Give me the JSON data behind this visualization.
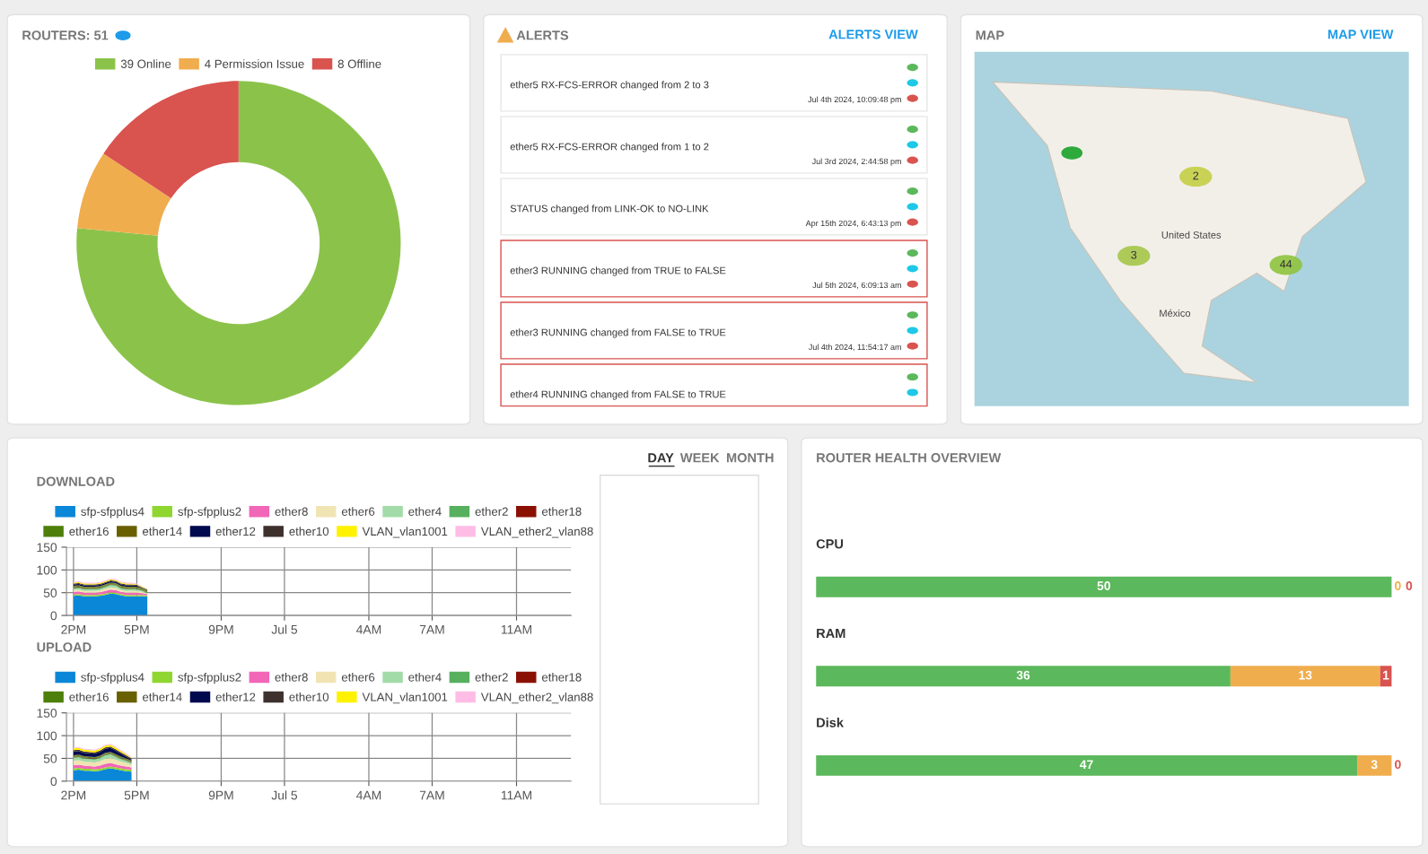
{
  "chart_data": [
    {
      "type": "donut",
      "title": "ROUTERS: 51",
      "legend": "top",
      "categories": [
        "39 Online",
        "4 Permission Issue",
        "8 Offline"
      ],
      "values": [
        39,
        4,
        8
      ],
      "colors": [
        "#8bc34a",
        "#f0ad4e",
        "#d9534f"
      ]
    },
    {
      "type": "other",
      "title": "ALERTS",
      "annotations": [
        "ALERTS VIEW",
        "ether5 RX-FCS-ERROR changed from 2 to 3",
        "Jul 4th 2024, 10:09:48 pm",
        "ether5 RX-FCS-ERROR changed from 1 to 2",
        "Jul 3rd 2024, 2:44:58 pm",
        "STATUS changed from LINK-OK to NO-LINK",
        "Apr 15th 2024, 6:43:13 pm",
        "ether3 RUNNING changed from TRUE to FALSE",
        "Jul 5th 2024, 6:09:13 am",
        "ether3 RUNNING changed from FALSE to TRUE",
        "Jul 4th 2024, 11:54:17 am",
        "ether4 RUNNING changed from FALSE to TRUE"
      ]
    },
    {
      "type": "other",
      "title": "MAP",
      "annotations": [
        "MAP VIEW",
        "United States",
        "México",
        "2",
        "3",
        "44"
      ]
    },
    {
      "type": "area",
      "stacked": true,
      "title": "DOWNLOAD",
      "annotations": [
        "DAY",
        "WEEK",
        "MONTH"
      ],
      "legend": "top",
      "grid": true,
      "x": [
        "2024-07-04T14:00",
        "2024-07-04T14:15",
        "2024-07-04T14:30",
        "2024-07-04T14:45",
        "2024-07-04T15:00",
        "2024-07-04T15:15",
        "2024-07-04T15:30",
        "2024-07-04T15:45",
        "2024-07-04T16:00",
        "2024-07-04T16:15",
        "2024-07-04T16:30",
        "2024-07-04T16:45",
        "2024-07-04T17:00",
        "2024-07-04T17:15",
        "2024-07-04T17:30"
      ],
      "xlim": [
        "2024-07-04T13:40",
        "2024-07-05T13:35"
      ],
      "xticks": [
        {
          "value": "2024-07-04T14:00",
          "label": "2PM"
        },
        {
          "value": "2024-07-04T17:00",
          "label": "5PM"
        },
        {
          "value": "2024-07-04T21:00",
          "label": "9PM"
        },
        {
          "value": "2024-07-05T00:00",
          "label": "Jul 5"
        },
        {
          "value": "2024-07-05T04:00",
          "label": "4AM"
        },
        {
          "value": "2024-07-05T07:00",
          "label": "7AM"
        },
        {
          "value": "2024-07-05T11:00",
          "label": "11AM"
        }
      ],
      "ylim": [
        0,
        150
      ],
      "yticks": [
        0,
        50,
        100,
        150
      ],
      "series": [
        {
          "name": "sfp-sfpplus4",
          "color": "#0b87d8",
          "values": [
            43,
            44,
            42,
            42,
            42,
            43,
            45,
            48,
            47,
            44,
            42,
            42,
            42,
            42,
            42
          ]
        },
        {
          "name": "sfp-sfpplus2",
          "color": "#8fd631",
          "values": [
            3,
            3,
            3,
            3,
            3,
            3,
            3,
            3,
            3,
            3,
            3,
            3,
            3,
            3,
            2
          ]
        },
        {
          "name": "ether8",
          "color": "#f266b8",
          "values": [
            6,
            6,
            5,
            5,
            5,
            5,
            6,
            6,
            6,
            5,
            5,
            5,
            5,
            4,
            3
          ]
        },
        {
          "name": "ether6",
          "color": "#f1e4b3",
          "values": [
            4,
            4,
            4,
            4,
            4,
            4,
            5,
            5,
            5,
            4,
            4,
            4,
            4,
            3,
            1
          ]
        },
        {
          "name": "ether4",
          "color": "#a3dba8",
          "values": [
            3,
            3,
            3,
            3,
            3,
            3,
            3,
            4,
            4,
            3,
            3,
            3,
            3,
            2,
            1
          ]
        },
        {
          "name": "ether2",
          "color": "#56b05e",
          "values": [
            2,
            2,
            2,
            2,
            2,
            2,
            2,
            2,
            2,
            2,
            2,
            2,
            2,
            2,
            2
          ]
        },
        {
          "name": "ether18",
          "color": "#8b1004",
          "values": [
            1,
            1,
            1,
            1,
            1,
            1,
            1,
            1,
            1,
            1,
            1,
            1,
            1,
            1,
            1
          ]
        },
        {
          "name": "ether16",
          "color": "#4e7f0b",
          "values": [
            2,
            2,
            2,
            2,
            2,
            2,
            2,
            2,
            2,
            2,
            2,
            2,
            2,
            2,
            2
          ]
        },
        {
          "name": "ether14",
          "color": "#6a6000",
          "values": [
            1,
            1,
            1,
            1,
            1,
            1,
            1,
            1,
            1,
            1,
            1,
            1,
            1,
            1,
            1
          ]
        },
        {
          "name": "ether12",
          "color": "#010a4f",
          "values": [
            3,
            3,
            3,
            3,
            3,
            3,
            3,
            3,
            3,
            3,
            3,
            3,
            2,
            1,
            1
          ]
        },
        {
          "name": "ether10",
          "color": "#3e302c",
          "values": [
            2,
            2,
            2,
            2,
            2,
            2,
            2,
            2,
            2,
            2,
            2,
            2,
            2,
            1,
            1
          ]
        },
        {
          "name": "VLAN_vlan1001",
          "color": "#fff200",
          "values": [
            2,
            2,
            2,
            2,
            2,
            2,
            2,
            2,
            2,
            2,
            2,
            2,
            1,
            1,
            1
          ]
        },
        {
          "name": "VLAN_ether2_vlan88",
          "color": "#ffbde6",
          "values": [
            2,
            2,
            2,
            2,
            2,
            2,
            2,
            2,
            2,
            2,
            2,
            2,
            2,
            1,
            1
          ]
        }
      ]
    },
    {
      "type": "area",
      "stacked": true,
      "title": "UPLOAD",
      "legend": "top",
      "grid": true,
      "x": [
        "2024-07-04T14:00",
        "2024-07-04T14:15",
        "2024-07-04T14:30",
        "2024-07-04T14:45",
        "2024-07-04T15:00",
        "2024-07-04T15:15",
        "2024-07-04T15:30",
        "2024-07-04T15:45",
        "2024-07-04T16:00",
        "2024-07-04T16:15",
        "2024-07-04T16:30",
        "2024-07-04T16:45"
      ],
      "xlim": [
        "2024-07-04T13:40",
        "2024-07-05T13:35"
      ],
      "xticks": [
        {
          "value": "2024-07-04T14:00",
          "label": "2PM"
        },
        {
          "value": "2024-07-04T17:00",
          "label": "5PM"
        },
        {
          "value": "2024-07-04T21:00",
          "label": "9PM"
        },
        {
          "value": "2024-07-05T00:00",
          "label": "Jul 5"
        },
        {
          "value": "2024-07-05T04:00",
          "label": "4AM"
        },
        {
          "value": "2024-07-05T07:00",
          "label": "7AM"
        },
        {
          "value": "2024-07-05T11:00",
          "label": "11AM"
        }
      ],
      "ylim": [
        0,
        150
      ],
      "yticks": [
        0,
        50,
        100,
        150
      ],
      "series": [
        {
          "name": "sfp-sfpplus4",
          "color": "#0b87d8",
          "values": [
            24,
            25,
            23,
            23,
            22,
            23,
            26,
            28,
            26,
            24,
            22,
            21
          ]
        },
        {
          "name": "sfp-sfpplus2",
          "color": "#8fd631",
          "values": [
            4,
            4,
            4,
            4,
            4,
            4,
            4,
            4,
            4,
            4,
            4,
            4
          ]
        },
        {
          "name": "ether8",
          "color": "#f266b8",
          "values": [
            7,
            7,
            7,
            6,
            6,
            7,
            8,
            8,
            7,
            6,
            6,
            5
          ]
        },
        {
          "name": "ether6",
          "color": "#f1e4b3",
          "values": [
            10,
            10,
            9,
            9,
            9,
            10,
            11,
            11,
            10,
            9,
            8,
            6
          ]
        },
        {
          "name": "ether4",
          "color": "#a3dba8",
          "values": [
            6,
            6,
            6,
            6,
            6,
            6,
            7,
            7,
            6,
            5,
            4,
            3
          ]
        },
        {
          "name": "ether2",
          "color": "#56b05e",
          "values": [
            2,
            2,
            2,
            2,
            2,
            2,
            2,
            2,
            2,
            2,
            2,
            2
          ]
        },
        {
          "name": "ether18",
          "color": "#8b1004",
          "values": [
            1,
            1,
            1,
            1,
            1,
            1,
            1,
            1,
            1,
            1,
            1,
            1
          ]
        },
        {
          "name": "ether16",
          "color": "#4e7f0b",
          "values": [
            2,
            2,
            2,
            2,
            2,
            2,
            2,
            2,
            2,
            2,
            2,
            2
          ]
        },
        {
          "name": "ether14",
          "color": "#6a6000",
          "values": [
            1,
            1,
            1,
            1,
            1,
            1,
            1,
            1,
            1,
            1,
            1,
            1
          ]
        },
        {
          "name": "ether12",
          "color": "#010a4f",
          "values": [
            8,
            8,
            7,
            7,
            7,
            8,
            9,
            9,
            8,
            6,
            4,
            2
          ]
        },
        {
          "name": "ether10",
          "color": "#3e302c",
          "values": [
            3,
            3,
            3,
            3,
            3,
            3,
            3,
            3,
            3,
            3,
            3,
            3
          ]
        },
        {
          "name": "VLAN_vlan1001",
          "color": "#fff200",
          "values": [
            4,
            4,
            4,
            4,
            4,
            4,
            4,
            4,
            4,
            3,
            2,
            1
          ]
        },
        {
          "name": "VLAN_ether2_vlan88",
          "color": "#ffbde6",
          "values": [
            2,
            2,
            2,
            2,
            2,
            2,
            2,
            2,
            2,
            2,
            2,
            2
          ]
        }
      ]
    },
    {
      "type": "bar",
      "orientation": "horizontal",
      "stacked": true,
      "data_labels": true,
      "title": "ROUTER HEALTH OVERVIEW",
      "categories": [
        "CPU",
        "RAM",
        "Disk"
      ],
      "series": [
        {
          "color": "#5cb85c",
          "values": [
            50,
            36,
            47
          ]
        },
        {
          "color": "#f0ad4e",
          "values": [
            0,
            13,
            3
          ]
        },
        {
          "color": "#d9534f",
          "values": [
            0,
            1,
            0
          ]
        }
      ]
    }
  ]
}
